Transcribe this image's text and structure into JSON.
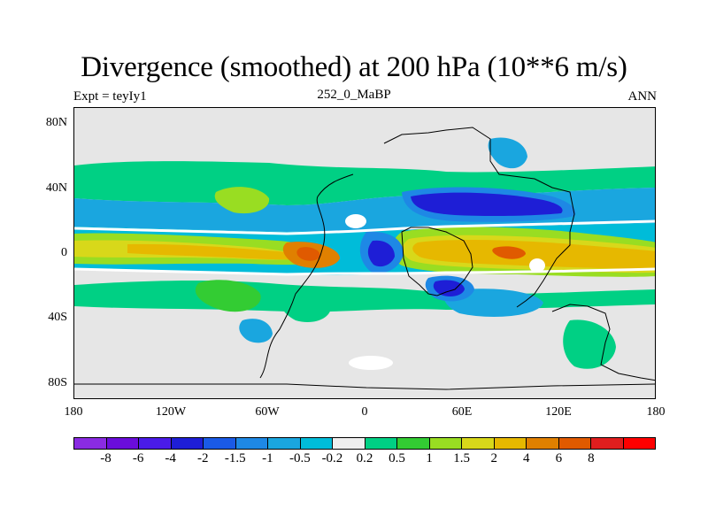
{
  "title": "Divergence (smoothed) at 200 hPa (10**6 m/s)",
  "subtitle_left": "Expt = teyIy1",
  "subtitle_center": "252_0_MaBP",
  "subtitle_right": "ANN",
  "map": {
    "y_ticks": [
      "80N",
      "40N",
      "0",
      "40S",
      "80S"
    ],
    "x_ticks": [
      "180",
      "120W",
      "60W",
      "0",
      "60E",
      "120E",
      "180"
    ],
    "background_color": "#e6e6e6"
  },
  "colorbar": {
    "colors": [
      "#8a2be2",
      "#6a0ddb",
      "#4a1be8",
      "#1e1ed6",
      "#1a5ae6",
      "#1e88e5",
      "#1aa6df",
      "#00bcd9",
      "#eeeeee",
      "#00d084",
      "#33cc33",
      "#99dd22",
      "#d8d81a",
      "#e6b800",
      "#e08000",
      "#e05a00",
      "#e01e1e",
      "#ff0000"
    ],
    "labels": [
      "-8",
      "-6",
      "-4",
      "-2",
      "-1.5",
      "-1",
      "-0.5",
      "-0.2",
      "0.2",
      "0.5",
      "1",
      "1.5",
      "2",
      "4",
      "6",
      "8"
    ]
  }
}
